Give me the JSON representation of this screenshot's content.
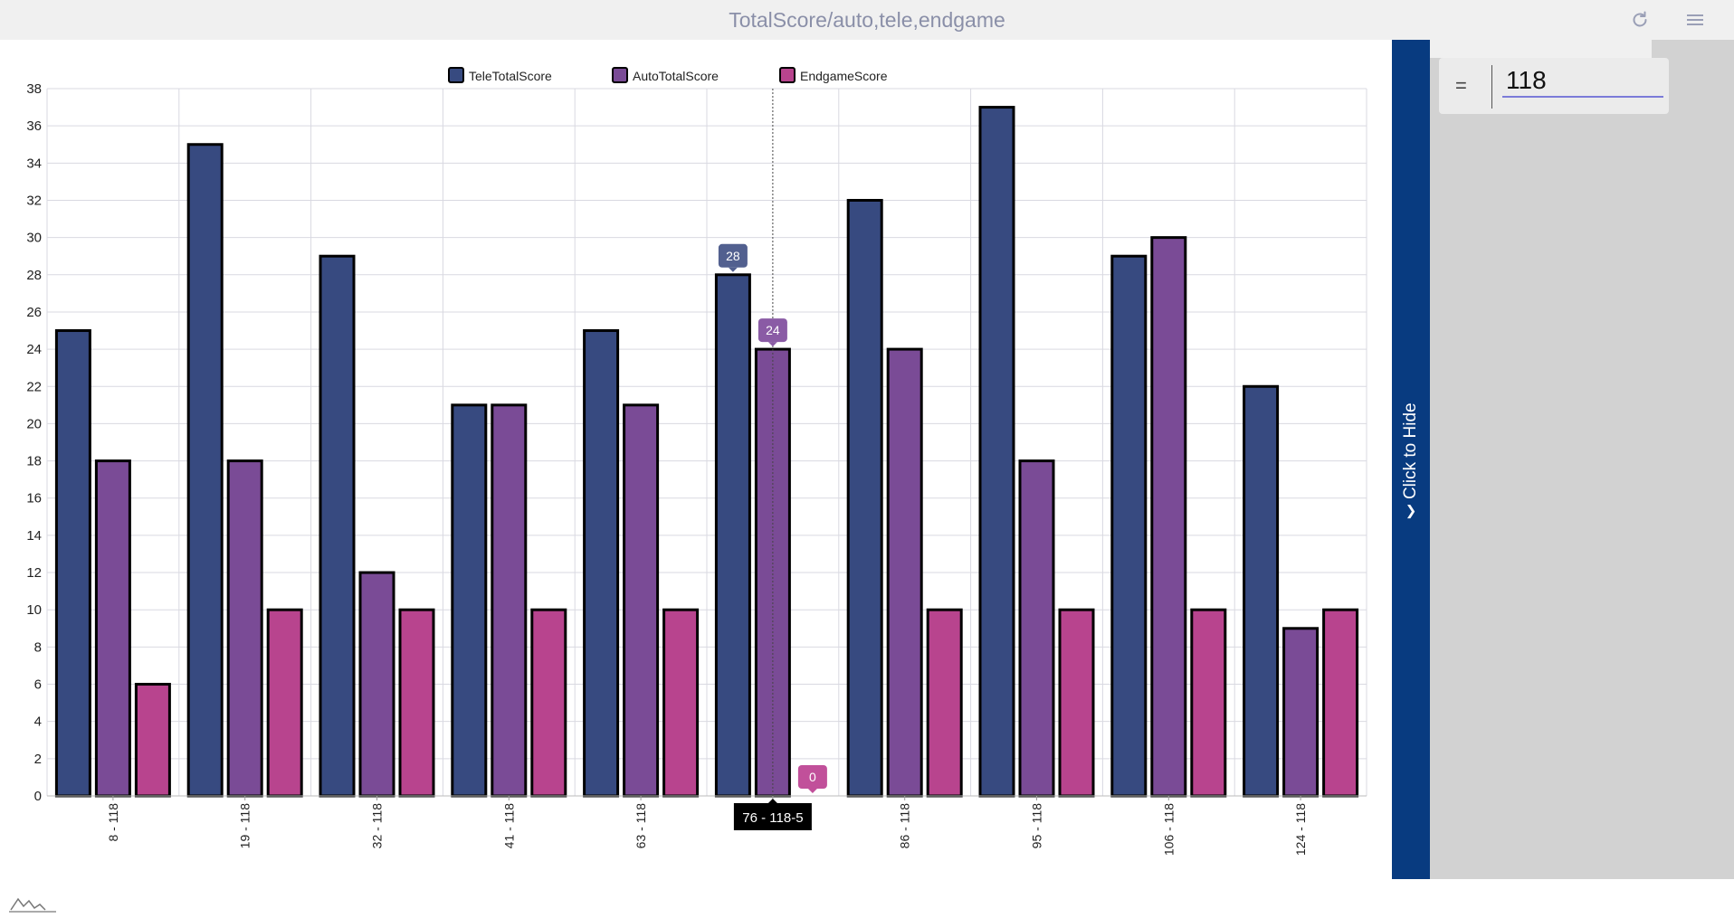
{
  "window": {
    "title": "TotalScore/auto,tele,endgame"
  },
  "icons": {
    "refresh": "refresh-icon",
    "menu": "hamburger-menu-icon",
    "logo": "chart-logo-icon",
    "chevron": "chevron-down-icon"
  },
  "side_panel": {
    "toggle_label": "Click to Hide",
    "chevron": "❯",
    "filter_operator": "=",
    "filter_value": "118"
  },
  "chart_data": {
    "type": "bar",
    "categories": [
      "8 - 118",
      "19 - 118",
      "32 - 118",
      "41 - 118",
      "63 - 118",
      "76",
      "86 - 118",
      "95 - 118",
      "106 - 118",
      "124 - 118"
    ],
    "series": [
      {
        "name": "TeleTotalScore",
        "color": "#374a80",
        "values": [
          25,
          35,
          29,
          21,
          25,
          28,
          32,
          37,
          29,
          22
        ]
      },
      {
        "name": "AutoTotalScore",
        "color": "#7a4b96",
        "values": [
          18,
          18,
          12,
          21,
          21,
          24,
          24,
          18,
          30,
          9
        ]
      },
      {
        "name": "EndgameScore",
        "color": "#b8448e",
        "values": [
          6,
          10,
          10,
          10,
          10,
          0,
          10,
          10,
          10,
          10
        ]
      }
    ],
    "ylim": [
      0,
      38
    ],
    "yticks": [
      0,
      2,
      4,
      6,
      8,
      10,
      12,
      14,
      16,
      18,
      20,
      22,
      24,
      26,
      28,
      30,
      32,
      34,
      36,
      38
    ],
    "grid": true,
    "legend": "top-center",
    "tooltip": {
      "category_index": 5,
      "category_label": "76 - 118-5",
      "values": [
        "28",
        "24",
        "0"
      ]
    }
  }
}
